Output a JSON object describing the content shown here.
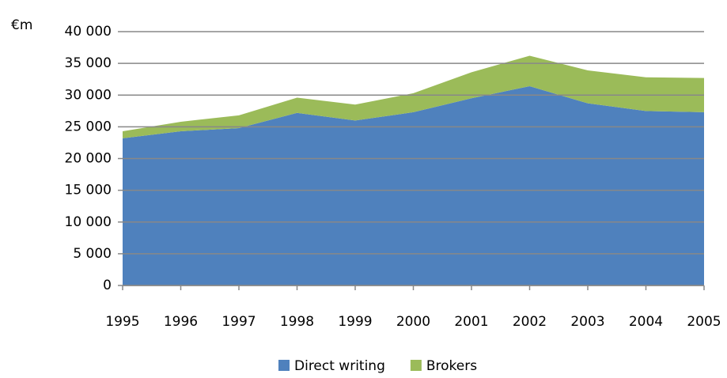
{
  "chart_data": {
    "type": "stacked_area",
    "y_label": "€m",
    "x": [
      1995,
      1996,
      1997,
      1998,
      1999,
      2000,
      2001,
      2002,
      2003,
      2004,
      2005
    ],
    "xlim": [
      1995,
      2005
    ],
    "xticks": [
      1995,
      1996,
      1997,
      1998,
      1999,
      2000,
      2001,
      2002,
      2003,
      2004,
      2005
    ],
    "series": [
      {
        "name": "Direct writing",
        "color": "#4f81bd",
        "values": [
          23200,
          24300,
          24800,
          27200,
          26000,
          27300,
          29500,
          31400,
          28700,
          27500,
          27300
        ]
      },
      {
        "name": "Brokers",
        "color": "#9bbb59",
        "values": [
          1100,
          1500,
          2000,
          2400,
          2500,
          3000,
          4100,
          4800,
          5200,
          5300,
          5400
        ]
      }
    ],
    "ylim": [
      0,
      40000
    ],
    "yticks": [
      0,
      {
        "value": 5000,
        "label": "5 000"
      },
      {
        "value": 10000,
        "label": "10 000"
      },
      {
        "value": 15000,
        "label": "15 000"
      },
      {
        "value": 20000,
        "label": "20 000"
      },
      {
        "value": 25000,
        "label": "25 000"
      },
      {
        "value": 30000,
        "label": "30 000"
      },
      {
        "value": 35000,
        "label": "35 000"
      },
      {
        "value": 40000,
        "label": "40 000"
      }
    ],
    "grid": true
  }
}
